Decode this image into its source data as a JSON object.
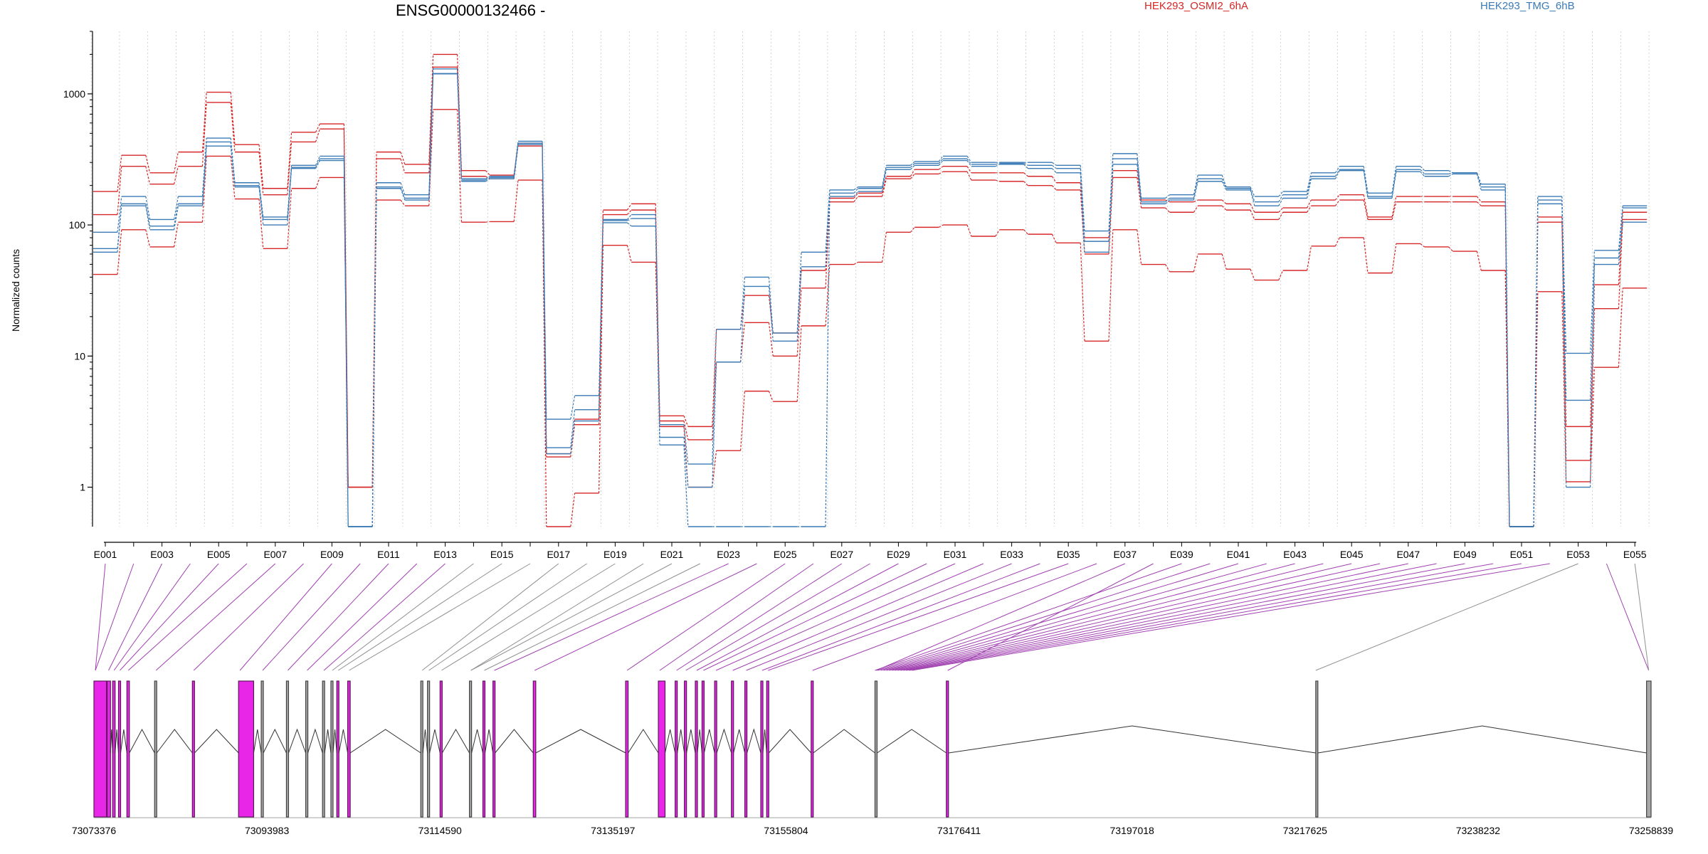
{
  "chart_data": {
    "type": "line",
    "title": "ENSG00000132466 -",
    "ylabel": "Normalized counts",
    "xlabel": "",
    "y_scale": "log",
    "ylim": [
      0.5,
      3000
    ],
    "y_ticks": [
      1,
      10,
      100,
      1000
    ],
    "y_tick_labels": [
      "1",
      "10",
      "100",
      "1000"
    ],
    "grid": "vertical dotted lines between exon bins",
    "legend_position": "top-right",
    "legend": [
      {
        "name": "HEK293_OSMI2_6hA",
        "color": "#d62728"
      },
      {
        "name": "HEK293_TMG_6hB",
        "color": "#3a7ab5"
      }
    ],
    "categories": [
      "E001",
      "E002",
      "E003",
      "E004",
      "E005",
      "E006",
      "E007",
      "E008",
      "E009",
      "E010",
      "E011",
      "E012",
      "E013",
      "E014",
      "E015",
      "E016",
      "E017",
      "E018",
      "E019",
      "E020",
      "E021",
      "E022",
      "E023",
      "E024",
      "E025",
      "E026",
      "E027",
      "E028",
      "E029",
      "E030",
      "E031",
      "E032",
      "E033",
      "E034",
      "E035",
      "E036",
      "E037",
      "E038",
      "E039",
      "E040",
      "E041",
      "E042",
      "E043",
      "E044",
      "E045",
      "E046",
      "E047",
      "E048",
      "E049",
      "E050",
      "E051",
      "E052",
      "E053",
      "E054",
      "E055"
    ],
    "x_tick_labels": [
      "E001",
      "E003",
      "E005",
      "E007",
      "E009",
      "E011",
      "E013",
      "E015",
      "E017",
      "E019",
      "E021",
      "E023",
      "E025",
      "E027",
      "E029",
      "E031",
      "E033",
      "E035",
      "E037",
      "E039",
      "E041",
      "E043",
      "E045",
      "E047",
      "E049",
      "E051",
      "E053",
      "E055"
    ],
    "series": [
      {
        "name": "HEK293_OSMI2_6hA",
        "color": "#d62728",
        "values": [
          180,
          340,
          250,
          360,
          1030,
          410,
          190,
          510,
          590,
          1,
          360,
          290,
          2000,
          260,
          240,
          420,
          1.8,
          3.3,
          130,
          145,
          3.5,
          2.9,
          16,
          29,
          15,
          45,
          160,
          175,
          235,
          265,
          280,
          250,
          250,
          235,
          210,
          80,
          260,
          155,
          150,
          155,
          145,
          125,
          135,
          155,
          170,
          115,
          165,
          165,
          165,
          150,
          0.5,
          115,
          2.9,
          35,
          125
        ]
      },
      {
        "name": "HEK293_OSMI2_6hA",
        "color": "#d62728",
        "values": [
          120,
          280,
          205,
          280,
          860,
          360,
          170,
          430,
          540,
          1,
          320,
          250,
          1600,
          235,
          225,
          400,
          1.7,
          3.0,
          120,
          130,
          3.2,
          2.3,
          9,
          18,
          10,
          33,
          150,
          165,
          225,
          245,
          255,
          220,
          215,
          200,
          185,
          60,
          230,
          135,
          125,
          140,
          130,
          110,
          125,
          140,
          155,
          110,
          150,
          150,
          150,
          140,
          0.5,
          105,
          1.6,
          23,
          110
        ]
      },
      {
        "name": "HEK293_OSMI2_6hA",
        "color": "#d62728",
        "values": [
          42,
          92,
          68,
          105,
          335,
          158,
          66,
          190,
          230,
          1,
          155,
          140,
          760,
          105,
          106,
          220,
          0.5,
          0.9,
          70,
          52,
          2.9,
          1.0,
          1.9,
          5.4,
          4.5,
          17,
          50,
          52,
          88,
          96,
          100,
          82,
          92,
          85,
          73,
          13,
          92,
          50,
          44,
          60,
          46,
          38,
          45,
          69,
          80,
          43,
          72,
          68,
          63,
          45,
          0.5,
          31,
          1.1,
          8.2,
          33
        ]
      },
      {
        "name": "HEK293_TMG_6hB",
        "color": "#3a7ab5",
        "values": [
          88,
          165,
          110,
          165,
          460,
          210,
          115,
          285,
          335,
          0.5,
          210,
          170,
          1550,
          225,
          235,
          435,
          3.3,
          5.0,
          110,
          120,
          3.0,
          1.5,
          16,
          40,
          15,
          62,
          185,
          195,
          285,
          305,
          335,
          300,
          300,
          300,
          285,
          90,
          350,
          160,
          170,
          240,
          195,
          165,
          180,
          250,
          280,
          175,
          280,
          260,
          250,
          205,
          0.5,
          165,
          10.5,
          64,
          140
        ]
      },
      {
        "name": "HEK293_TMG_6hB",
        "color": "#3a7ab5",
        "values": [
          66,
          145,
          98,
          145,
          430,
          200,
          110,
          275,
          320,
          0.5,
          195,
          160,
          1430,
          220,
          230,
          420,
          2.0,
          3.9,
          108,
          112,
          2.4,
          1.0,
          9,
          34,
          13,
          48,
          175,
          190,
          275,
          295,
          320,
          290,
          295,
          285,
          270,
          75,
          320,
          150,
          160,
          225,
          190,
          150,
          170,
          235,
          265,
          165,
          265,
          245,
          250,
          195,
          0.5,
          155,
          4.6,
          56,
          135
        ]
      },
      {
        "name": "HEK293_TMG_6hB",
        "color": "#3a7ab5",
        "values": [
          62,
          140,
          92,
          140,
          400,
          195,
          100,
          270,
          310,
          0.5,
          190,
          155,
          1420,
          215,
          225,
          410,
          1.8,
          3.2,
          104,
          98,
          2.1,
          0.5,
          0.5,
          0.5,
          0.5,
          0.5,
          165,
          180,
          265,
          285,
          310,
          280,
          290,
          270,
          250,
          62,
          290,
          145,
          155,
          215,
          185,
          140,
          160,
          225,
          260,
          160,
          255,
          235,
          245,
          185,
          0.5,
          145,
          1.0,
          50,
          105
        ]
      }
    ]
  },
  "gene_model": {
    "coordinate_ticks": [
      "73073376",
      "73093983",
      "73114590",
      "73135197",
      "73155804",
      "73176411",
      "73197018",
      "73217625",
      "73238232",
      "73258839"
    ],
    "colors": {
      "significant_exon": "#e826e8",
      "exon": "#a8a8a8",
      "connector_significant": "#a040b0",
      "connector": "#909090",
      "intron": "#333333"
    }
  }
}
